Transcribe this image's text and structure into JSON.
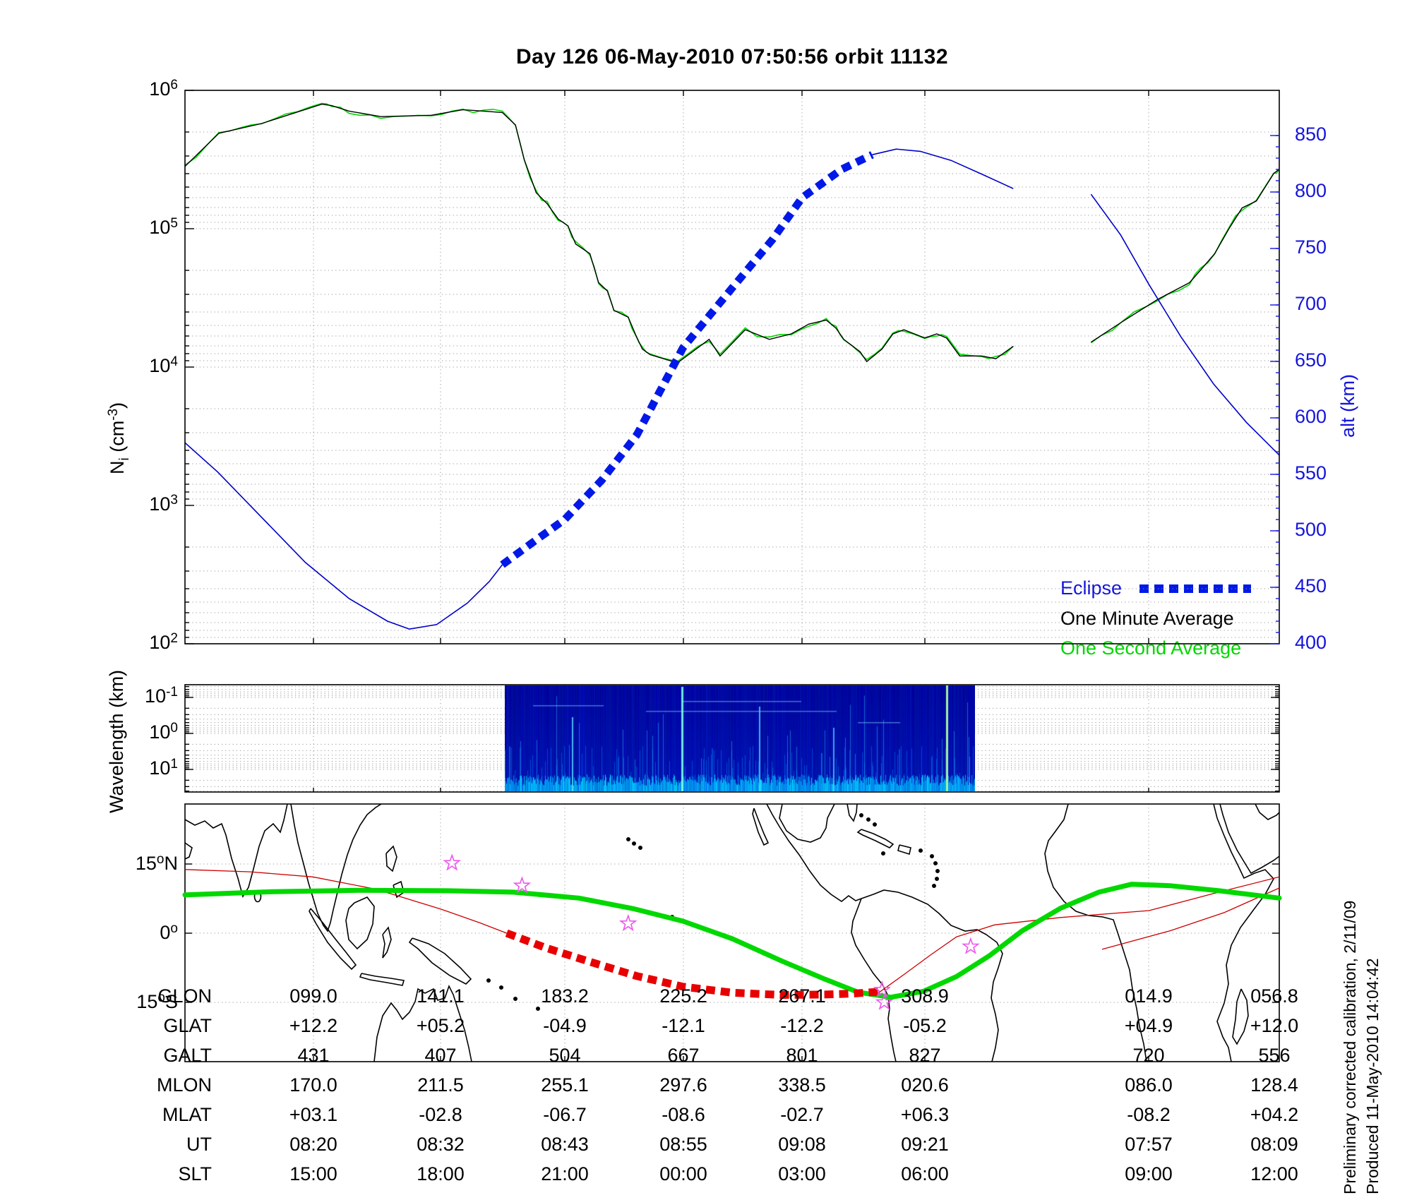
{
  "title": "Day 126  06-May-2010 07:50:56   orbit 11132",
  "colors": {
    "axis_blue": "#1414dc",
    "curve_blue": "#0000c8",
    "eclipse_blue": "#0018e8",
    "green_second": "#00d800",
    "minute_black": "#000000",
    "map_green": "#00d800",
    "map_red": "#e80000",
    "star_magenta": "#ee55ee",
    "grid_gray": "#999999"
  },
  "top_panel": {
    "ylabel_left": {
      "base": "N",
      "sub": "i",
      "mid": " (cm",
      "sup": "-3",
      "close": ")"
    },
    "ylabel_right": "alt (km)",
    "tick_base": "10",
    "left_tick_exps": [
      "6",
      "5",
      "4",
      "3",
      "2"
    ],
    "right_ticks": [
      "850",
      "800",
      "750",
      "700",
      "650",
      "600",
      "550",
      "500",
      "450",
      "400"
    ],
    "legend": [
      {
        "label": "Eclipse"
      },
      {
        "label": "One Minute Average"
      },
      {
        "label": "One Second Average"
      }
    ]
  },
  "wavelength_panel": {
    "ylabel": "Wavelength (km)",
    "tick_base": "10",
    "tick_exps": [
      "-1",
      "0",
      "1"
    ]
  },
  "map_panel": {
    "lat_labels": [
      {
        "num": "15",
        "deg": "o",
        "hemi": "N"
      },
      {
        "num": "0",
        "deg": "o",
        "hemi": ""
      },
      {
        "num": "15",
        "deg": "o",
        "hemi": "S"
      }
    ]
  },
  "table": {
    "rows": [
      {
        "label": "GLON",
        "values": [
          "099.0",
          "141.1",
          "183.2",
          "225.2",
          "267.1",
          "308.9",
          "014.9",
          "056.8"
        ]
      },
      {
        "label": "GLAT",
        "values": [
          "+12.2",
          "+05.2",
          "-04.9",
          "-12.1",
          "-12.2",
          "-05.2",
          "+04.9",
          "+12.0"
        ]
      },
      {
        "label": "GALT",
        "values": [
          "431",
          "407",
          "504",
          "667",
          "801",
          "827",
          "720",
          "556"
        ]
      },
      {
        "label": "MLON",
        "values": [
          "170.0",
          "211.5",
          "255.1",
          "297.6",
          "338.5",
          "020.6",
          "086.0",
          "128.4"
        ]
      },
      {
        "label": "MLAT",
        "values": [
          "+03.1",
          "-02.8",
          "-06.7",
          "-08.6",
          "-02.7",
          "+06.3",
          "-08.2",
          "+04.2"
        ]
      },
      {
        "label": "UT",
        "values": [
          "08:20",
          "08:32",
          "08:43",
          "08:55",
          "09:08",
          "09:21",
          "07:57",
          "08:09"
        ]
      },
      {
        "label": "SLT",
        "values": [
          "15:00",
          "18:00",
          "21:00",
          "00:00",
          "03:00",
          "06:00",
          "09:00",
          "12:00"
        ]
      }
    ]
  },
  "footer": {
    "line1": "Preliminary corrected calibration, 2/11/09",
    "line2": "Produced 11-May-2010 14:04:42"
  },
  "chart_data": {
    "type": "line",
    "title": "Day 126  06-May-2010 07:50:56   orbit 11132",
    "panels": [
      {
        "id": "ni_alt",
        "ylabel_left": "Ni (cm^-3)",
        "yscale_left": "log",
        "ylim_left": [
          100,
          1000000
        ],
        "ylabel_right": "alt (km)",
        "ylim_right_ticks": [
          400,
          850
        ],
        "x_note": "x is fraction of panel width; time axis labeled by ephemeris table below",
        "grid": true,
        "legend_position": "lower right inside",
        "series": [
          {
            "name": "One Minute Average",
            "axis": "left",
            "unit": "log10(cm^-3)",
            "segments": [
              [
                [
                  0,
                  5.45
                ],
                [
                  0.031,
                  5.69
                ],
                [
                  0.07,
                  5.76
                ],
                [
                  0.125,
                  5.9
                ],
                [
                  0.134,
                  5.89
                ],
                [
                  0.15,
                  5.85
                ],
                [
                  0.179,
                  5.81
                ],
                [
                  0.225,
                  5.82
                ],
                [
                  0.254,
                  5.86
                ],
                [
                  0.273,
                  5.85
                ],
                [
                  0.29,
                  5.84
                ],
                [
                  0.302,
                  5.75
                ],
                [
                  0.31,
                  5.5
                ],
                [
                  0.321,
                  5.26
                ],
                [
                  0.331,
                  5.18
                ],
                [
                  0.341,
                  5.07
                ],
                [
                  0.35,
                  5.02
                ],
                [
                  0.357,
                  4.89
                ],
                [
                  0.37,
                  4.82
                ],
                [
                  0.378,
                  4.61
                ],
                [
                  0.386,
                  4.55
                ],
                [
                  0.392,
                  4.41
                ],
                [
                  0.405,
                  4.36
                ],
                [
                  0.412,
                  4.23
                ],
                [
                  0.418,
                  4.13
                ],
                [
                  0.425,
                  4.09
                ],
                [
                  0.45,
                  4.03
                ],
                [
                  0.479,
                  4.2
                ],
                [
                  0.489,
                  4.08
                ],
                [
                  0.512,
                  4.27
                ],
                [
                  0.534,
                  4.2
                ],
                [
                  0.554,
                  4.24
                ],
                [
                  0.57,
                  4.31
                ],
                [
                  0.586,
                  4.34
                ],
                [
                  0.595,
                  4.28
                ],
                [
                  0.602,
                  4.2
                ],
                [
                  0.617,
                  4.11
                ],
                [
                  0.623,
                  4.04
                ],
                [
                  0.637,
                  4.13
                ],
                [
                  0.647,
                  4.24
                ],
                [
                  0.657,
                  4.27
                ],
                [
                  0.676,
                  4.21
                ],
                [
                  0.687,
                  4.24
                ],
                [
                  0.696,
                  4.21
                ],
                [
                  0.708,
                  4.08
                ],
                [
                  0.728,
                  4.08
                ],
                [
                  0.741,
                  4.06
                ],
                [
                  0.757,
                  4.15
                ]
              ],
              [
                [
                  0.828,
                  4.18
                ],
                [
                  0.857,
                  4.33
                ],
                [
                  0.889,
                  4.49
                ],
                [
                  0.918,
                  4.61
                ],
                [
                  0.928,
                  4.7
                ],
                [
                  0.941,
                  4.82
                ],
                [
                  0.954,
                  5.0
                ],
                [
                  0.966,
                  5.15
                ],
                [
                  0.979,
                  5.2
                ],
                [
                  0.995,
                  5.4
                ],
                [
                  1,
                  5.43
                ]
              ]
            ]
          },
          {
            "name": "One Second Average",
            "axis": "left",
            "derived": "One Minute Average plus small noise"
          },
          {
            "name": "altitude",
            "axis": "right",
            "unit": "km",
            "segments": [
              [
                [
                  0,
                  578
                ],
                [
                  0.03,
                  552
                ],
                [
                  0.07,
                  512
                ],
                [
                  0.11,
                  472
                ],
                [
                  0.15,
                  440
                ],
                [
                  0.185,
                  420
                ],
                [
                  0.205,
                  413
                ],
                [
                  0.23,
                  417
                ],
                [
                  0.258,
                  436
                ],
                [
                  0.278,
                  455
                ],
                [
                  0.29,
                  470
                ]
              ],
              [
                [
                  0.628,
                  833
                ],
                [
                  0.65,
                  838
                ],
                [
                  0.672,
                  836
                ],
                [
                  0.7,
                  828
                ],
                [
                  0.73,
                  815
                ],
                [
                  0.757,
                  803
                ]
              ],
              [
                [
                  0.828,
                  798
                ],
                [
                  0.855,
                  762
                ],
                [
                  0.881,
                  718
                ],
                [
                  0.91,
                  672
                ],
                [
                  0.94,
                  630
                ],
                [
                  0.97,
                  596
                ],
                [
                  1,
                  567
                ]
              ]
            ]
          },
          {
            "name": "Eclipse",
            "axis": "right",
            "unit": "km",
            "style": "thick-dashed",
            "points": [
              [
                0.29,
                470
              ],
              [
                0.321,
                492
              ],
              [
                0.347,
                510
              ],
              [
                0.381,
                545
              ],
              [
                0.413,
                585
              ],
              [
                0.455,
                662
              ],
              [
                0.5,
                715
              ],
              [
                0.537,
                758
              ],
              [
                0.564,
                795
              ],
              [
                0.6,
                820
              ],
              [
                0.628,
                833
              ]
            ]
          }
        ]
      },
      {
        "id": "spectrogram",
        "ylabel": "Wavelength (km)",
        "yscale": "log-inverted",
        "ytick_values_km": [
          0.1,
          1,
          10
        ],
        "data_extent_xfrac": [
          0.292,
          0.722
        ],
        "description": "dark blue spectrogram with vertical cyan streaks, brightest cyan band at longest wavelengths"
      },
      {
        "id": "map",
        "lat_ticks_deg": [
          15,
          0,
          -15
        ],
        "series": [
          {
            "name": "magnetic equator",
            "style": "thick green",
            "points_xfrac_lat": [
              [
                0,
                8.3
              ],
              [
                0.08,
                9.0
              ],
              [
                0.16,
                9.3
              ],
              [
                0.24,
                9.2
              ],
              [
                0.3,
                8.9
              ],
              [
                0.36,
                7.6
              ],
              [
                0.41,
                5.3
              ],
              [
                0.455,
                2.6
              ],
              [
                0.5,
                -1.2
              ],
              [
                0.545,
                -6.0
              ],
              [
                0.585,
                -10.0
              ],
              [
                0.615,
                -12.8
              ],
              [
                0.645,
                -13.9
              ],
              [
                0.675,
                -12.6
              ],
              [
                0.705,
                -9.4
              ],
              [
                0.735,
                -4.9
              ],
              [
                0.765,
                0.5
              ],
              [
                0.8,
                5.4
              ],
              [
                0.835,
                8.9
              ],
              [
                0.865,
                10.6
              ],
              [
                0.9,
                10.3
              ],
              [
                0.945,
                9.2
              ],
              [
                1,
                7.6
              ]
            ]
          },
          {
            "name": "ground track",
            "style": "thin red",
            "segments": [
              [
                [
                  0,
                  13.8
                ],
                [
                  0.06,
                  13.3
                ],
                [
                  0.117,
                  12.2
                ],
                [
                  0.175,
                  9.5
                ],
                [
                  0.234,
                  5.2
                ],
                [
                  0.27,
                  2.2
                ],
                [
                  0.294,
                  0.0
                ]
              ],
              [
                [
                  0.634,
                  -12.9
                ],
                [
                  0.658,
                  -8.8
                ],
                [
                  0.682,
                  -4.6
                ],
                [
                  0.705,
                  -0.8
                ],
                [
                  0.74,
                  1.8
                ],
                [
                  0.8,
                  3.4
                ],
                [
                  0.881,
                  4.9
                ],
                [
                  0.94,
                  8.6
                ],
                [
                  1,
                  12.2
                ]
              ]
            ]
          },
          {
            "name": "adjacent orbit track",
            "style": "thin red",
            "points_xfrac_lat": [
              [
                0.838,
                -3.5
              ],
              [
                0.9,
                0.5
              ],
              [
                0.95,
                4.5
              ],
              [
                1,
                9.8
              ]
            ]
          },
          {
            "name": "eclipse portion of track",
            "style": "thick dashed red",
            "points_xfrac_lat": [
              [
                0.294,
                0.0
              ],
              [
                0.33,
                -3.2
              ],
              [
                0.37,
                -6.2
              ],
              [
                0.413,
                -9.3
              ],
              [
                0.455,
                -11.6
              ],
              [
                0.5,
                -12.9
              ],
              [
                0.545,
                -13.4
              ],
              [
                0.585,
                -13.3
              ],
              [
                0.61,
                -13.1
              ],
              [
                0.634,
                -12.7
              ]
            ]
          },
          {
            "name": "station stars",
            "style": "magenta open stars",
            "points_xfrac_lat": [
              [
                0.244,
                15.2
              ],
              [
                0.308,
                10.3
              ],
              [
                0.405,
                2.1
              ],
              [
                0.718,
                -2.9
              ],
              [
                0.637,
                -12.3
              ],
              [
                0.639,
                -15.0
              ]
            ]
          }
        ]
      }
    ]
  }
}
